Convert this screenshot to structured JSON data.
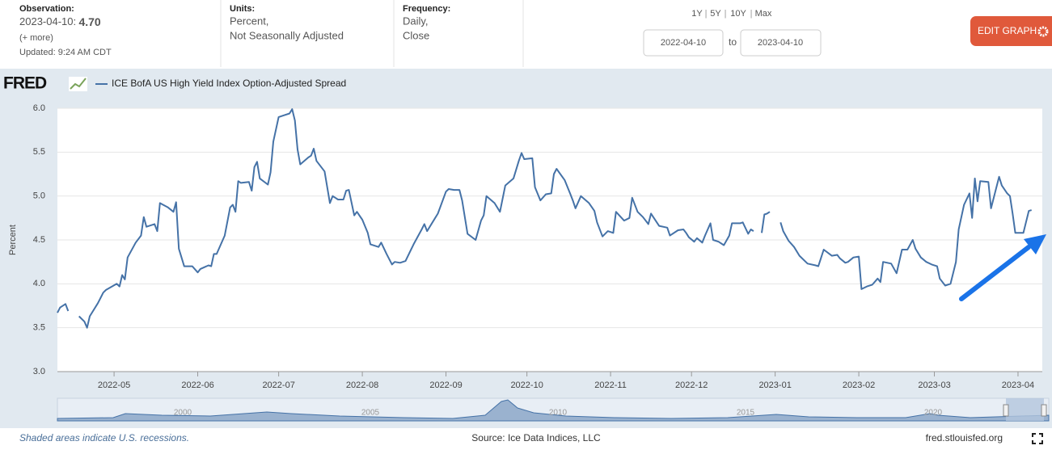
{
  "header": {
    "observation_label": "Observation:",
    "observation_date": "2023-04-10:",
    "observation_value": "4.70",
    "more": "(+ more)",
    "updated": "Updated: 9:24 AM CDT",
    "units_label": "Units:",
    "units": [
      "Percent,",
      "Not Seasonally Adjusted"
    ],
    "frequency_label": "Frequency:",
    "frequency": [
      "Daily,",
      "Close"
    ],
    "ranges": [
      "1Y",
      "5Y",
      "10Y",
      "Max"
    ],
    "range_start": "2022-04-10",
    "range_to": "to",
    "range_end": "2023-04-10",
    "edit_button": "EDIT GRAPH"
  },
  "logo": "FRED",
  "chart_data": {
    "type": "line",
    "ylabel": "Percent",
    "x": [
      "2022-04-10",
      "2022-04-11",
      "2022-04-13",
      "2022-04-14",
      "2022-04-15",
      "2022-04-18",
      "2022-04-20",
      "2022-04-21",
      "2022-04-22",
      "2022-04-25",
      "2022-04-27",
      "2022-04-28",
      "2022-05-02",
      "2022-05-03",
      "2022-05-04",
      "2022-05-05",
      "2022-05-06",
      "2022-05-09",
      "2022-05-11",
      "2022-05-12",
      "2022-05-13",
      "2022-05-16",
      "2022-05-17",
      "2022-05-18",
      "2022-05-21",
      "2022-05-23",
      "2022-05-24",
      "2022-05-25",
      "2022-05-27",
      "2022-05-30",
      "2022-06-01",
      "2022-06-02",
      "2022-06-05",
      "2022-06-06",
      "2022-06-07",
      "2022-06-08",
      "2022-06-11",
      "2022-06-13",
      "2022-06-14",
      "2022-06-15",
      "2022-06-16",
      "2022-06-17",
      "2022-06-20",
      "2022-06-21",
      "2022-06-22",
      "2022-06-23",
      "2022-06-24",
      "2022-06-27",
      "2022-06-28",
      "2022-06-29",
      "2022-07-01",
      "2022-07-03",
      "2022-07-05",
      "2022-07-06",
      "2022-07-07",
      "2022-07-08",
      "2022-07-09",
      "2022-07-12",
      "2022-07-13",
      "2022-07-14",
      "2022-07-15",
      "2022-07-18",
      "2022-07-20",
      "2022-07-21",
      "2022-07-23",
      "2022-07-25",
      "2022-07-26",
      "2022-07-27",
      "2022-07-29",
      "2022-07-30",
      "2022-08-01",
      "2022-08-03",
      "2022-08-04",
      "2022-08-07",
      "2022-08-08",
      "2022-08-10",
      "2022-08-12",
      "2022-08-13",
      "2022-08-15",
      "2022-08-17",
      "2022-08-20",
      "2022-08-23",
      "2022-08-24",
      "2022-08-25",
      "2022-08-27",
      "2022-08-29",
      "2022-09-01",
      "2022-09-02",
      "2022-09-04",
      "2022-09-06",
      "2022-09-07",
      "2022-09-09",
      "2022-09-12",
      "2022-09-14",
      "2022-09-15",
      "2022-09-16",
      "2022-09-19",
      "2022-09-21",
      "2022-09-23",
      "2022-09-26",
      "2022-09-28",
      "2022-09-29",
      "2022-09-30",
      "2022-10-03",
      "2022-10-04",
      "2022-10-06",
      "2022-10-08",
      "2022-10-10",
      "2022-10-11",
      "2022-10-12",
      "2022-10-15",
      "2022-10-17",
      "2022-10-18",
      "2022-10-19",
      "2022-10-21",
      "2022-10-24",
      "2022-10-26",
      "2022-10-27",
      "2022-10-29",
      "2022-10-31",
      "2022-11-02",
      "2022-11-03",
      "2022-11-06",
      "2022-11-08",
      "2022-11-09",
      "2022-11-11",
      "2022-11-13",
      "2022-11-15",
      "2022-11-16",
      "2022-11-19",
      "2022-11-22",
      "2022-11-23",
      "2022-11-26",
      "2022-11-28",
      "2022-11-29",
      "2022-11-30",
      "2022-12-02",
      "2022-12-03",
      "2022-12-05",
      "2022-12-06",
      "2022-12-08",
      "2022-12-09",
      "2022-12-11",
      "2022-12-13",
      "2022-12-15",
      "2022-12-16",
      "2022-12-19",
      "2022-12-20",
      "2022-12-22",
      "2022-12-23",
      "2022-12-24",
      "2022-12-26",
      "2022-12-27",
      "2022-12-28",
      "2022-12-29",
      "2022-12-30",
      "2023-01-02",
      "2023-01-03",
      "2023-01-04",
      "2023-01-06",
      "2023-01-08",
      "2023-01-10",
      "2023-01-13",
      "2023-01-16",
      "2023-01-17",
      "2023-01-19",
      "2023-01-22",
      "2023-01-24",
      "2023-01-25",
      "2023-01-27",
      "2023-01-28",
      "2023-01-30",
      "2023-02-01",
      "2023-02-02",
      "2023-02-04",
      "2023-02-06",
      "2023-02-08",
      "2023-02-09",
      "2023-02-10",
      "2023-02-13",
      "2023-02-15",
      "2023-02-17",
      "2023-02-19",
      "2023-02-21",
      "2023-02-22",
      "2023-02-24",
      "2023-02-26",
      "2023-02-28",
      "2023-03-02",
      "2023-03-03",
      "2023-03-05",
      "2023-03-07",
      "2023-03-09",
      "2023-03-10",
      "2023-03-12",
      "2023-03-14",
      "2023-03-15",
      "2023-03-16",
      "2023-03-17",
      "2023-03-18",
      "2023-03-21",
      "2023-03-22",
      "2023-03-25",
      "2023-03-26",
      "2023-03-28",
      "2023-03-29",
      "2023-03-30",
      "2023-03-31",
      "2023-04-03",
      "2023-04-05",
      "2023-04-06"
    ],
    "series": [
      {
        "name": "ICE BofA US High Yield Index Option-Adjusted Spread",
        "color": "#4572a7",
        "values": [
          3.67,
          3.73,
          3.77,
          3.69,
          null,
          3.63,
          3.57,
          3.5,
          3.63,
          3.78,
          3.9,
          3.93,
          4.0,
          3.97,
          4.1,
          4.05,
          4.3,
          4.47,
          4.55,
          4.76,
          4.65,
          4.68,
          4.6,
          4.92,
          4.87,
          4.82,
          4.93,
          4.4,
          4.2,
          4.2,
          4.13,
          4.17,
          4.21,
          4.2,
          4.34,
          4.34,
          4.55,
          4.87,
          4.9,
          4.82,
          5.17,
          5.15,
          5.16,
          5.06,
          5.33,
          5.39,
          5.2,
          5.13,
          5.27,
          5.62,
          5.9,
          5.92,
          5.94,
          5.99,
          5.86,
          5.53,
          5.36,
          5.44,
          5.46,
          5.54,
          5.4,
          5.28,
          4.92,
          5.0,
          4.96,
          4.96,
          5.06,
          5.07,
          4.78,
          4.82,
          4.73,
          4.58,
          4.45,
          4.42,
          4.47,
          4.34,
          4.22,
          4.25,
          4.24,
          4.26,
          4.45,
          4.62,
          4.68,
          4.6,
          4.7,
          4.8,
          5.05,
          5.08,
          5.07,
          5.07,
          4.95,
          4.57,
          4.5,
          4.72,
          4.78,
          5.0,
          4.92,
          4.82,
          5.12,
          5.2,
          5.4,
          5.49,
          5.42,
          5.43,
          5.1,
          4.95,
          5.02,
          5.03,
          5.25,
          5.31,
          5.18,
          5.03,
          4.95,
          4.86,
          5.0,
          4.92,
          4.83,
          4.7,
          4.54,
          4.6,
          4.58,
          4.82,
          4.72,
          4.75,
          4.98,
          4.82,
          4.76,
          4.68,
          4.8,
          4.66,
          4.64,
          4.55,
          4.61,
          4.62,
          4.58,
          4.53,
          4.48,
          4.52,
          4.47,
          4.55,
          4.69,
          4.5,
          4.48,
          4.44,
          4.55,
          4.69,
          4.69,
          4.7,
          4.57,
          4.62,
          4.6,
          null,
          4.58,
          4.79,
          4.8,
          4.82,
          null,
          4.7,
          4.6,
          4.49,
          4.42,
          4.32,
          4.23,
          4.21,
          4.2,
          4.39,
          4.32,
          4.33,
          4.29,
          4.24,
          4.25,
          4.3,
          4.31,
          3.94,
          3.97,
          3.99,
          4.06,
          4.02,
          4.25,
          4.23,
          4.12,
          4.39,
          4.39,
          4.5,
          4.4,
          4.3,
          4.25,
          4.22,
          4.2,
          4.06,
          3.98,
          4.0,
          4.25,
          4.62,
          4.9,
          5.03,
          4.75,
          5.2,
          4.94,
          5.17,
          5.16,
          4.86,
          5.22,
          5.12,
          5.03,
          5.0,
          4.8,
          4.58,
          4.58,
          4.83,
          4.84
        ]
      }
    ],
    "xlim": [
      "2022-04-10",
      "2023-04-10"
    ],
    "xticks": [
      {
        "value": "2022-05-01",
        "label": "2022-05"
      },
      {
        "value": "2022-06-01",
        "label": "2022-06"
      },
      {
        "value": "2022-07-01",
        "label": "2022-07"
      },
      {
        "value": "2022-08-01",
        "label": "2022-08"
      },
      {
        "value": "2022-09-01",
        "label": "2022-09"
      },
      {
        "value": "2022-10-01",
        "label": "2022-10"
      },
      {
        "value": "2022-11-01",
        "label": "2022-11"
      },
      {
        "value": "2022-12-01",
        "label": "2022-12"
      },
      {
        "value": "2023-01-01",
        "label": "2023-01"
      },
      {
        "value": "2023-02-01",
        "label": "2023-02"
      },
      {
        "value": "2023-03-01",
        "label": "2023-03"
      },
      {
        "value": "2023-04-01",
        "label": "2023-04"
      }
    ],
    "ylim": [
      3,
      6
    ],
    "yticks": [
      {
        "value": 3,
        "label": "3.0"
      },
      {
        "value": 3.5,
        "label": "3.5"
      },
      {
        "value": 4,
        "label": "4.0"
      },
      {
        "value": 4.5,
        "label": "4.5"
      },
      {
        "value": 5,
        "label": "5.0"
      },
      {
        "value": 5.5,
        "label": "5.5"
      },
      {
        "value": 6,
        "label": "6.0"
      }
    ],
    "grid": true
  },
  "navigator": {
    "labels": [
      "2000",
      "2005",
      "2010",
      "2015",
      "2020"
    ]
  },
  "footer": {
    "recession_note": "Shaded areas indicate U.S. recessions.",
    "source": "Source: Ice Data Indices, LLC",
    "site": "fred.stlouisfed.org"
  }
}
